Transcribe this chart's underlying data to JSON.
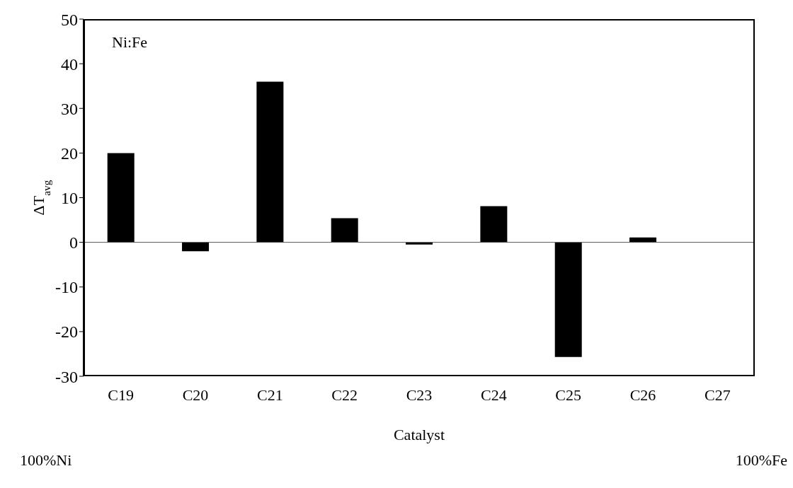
{
  "chart_data": {
    "type": "bar",
    "xlabel": "Catalyst",
    "ylabel": "ΔT$_{avg}$",
    "categories": [
      "C19",
      "C20",
      "C21",
      "C22",
      "C23",
      "C24",
      "C25",
      "C26",
      "C27"
    ],
    "values": [
      20,
      -2,
      36,
      5.4,
      -0.5,
      8.1,
      -25.7,
      1.1,
      null
    ],
    "color": "#000000",
    "ylim": [
      -30,
      50
    ],
    "yticks": [
      -30,
      -20,
      -10,
      0,
      10,
      20,
      30,
      40,
      50
    ],
    "legend": false,
    "annotations": [
      "Ni:Fe",
      "100%Ni",
      "100%Fe"
    ]
  }
}
